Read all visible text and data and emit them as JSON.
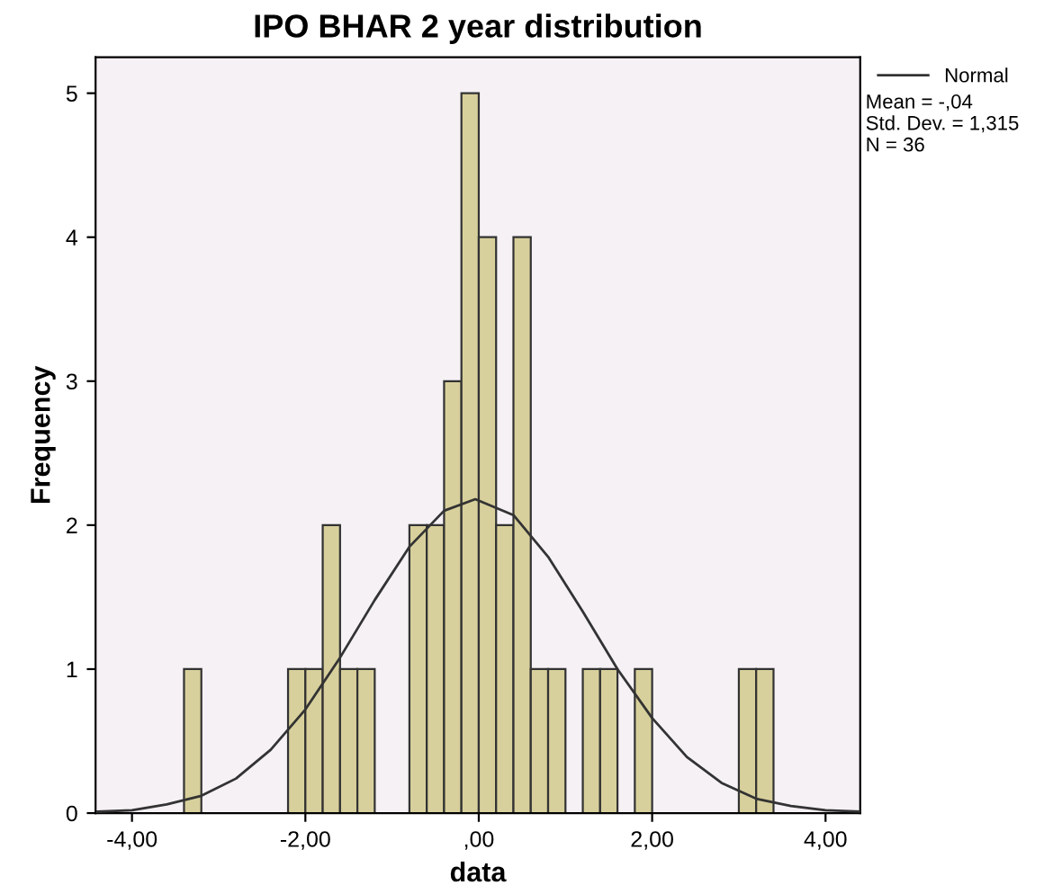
{
  "chart_data": {
    "type": "histogram",
    "title": "IPO BHAR 2 year distribution",
    "xlabel": "data",
    "ylabel": "Frequency",
    "bins": [
      -3.4,
      -3.2,
      -3.0,
      -2.8,
      -2.6,
      -2.4,
      -2.2,
      -2.0,
      -1.8,
      -1.6,
      -1.4,
      -1.2,
      -1.0,
      -0.8,
      -0.6,
      -0.4,
      -0.2,
      0.0,
      0.2,
      0.4,
      0.6,
      0.8,
      1.0,
      1.2,
      1.4,
      1.6,
      1.8,
      2.0,
      2.2,
      2.4,
      2.6,
      2.8,
      3.0,
      3.2,
      3.4
    ],
    "values": [
      1,
      0,
      0,
      0,
      0,
      0,
      1,
      1,
      2,
      1,
      1,
      0,
      0,
      2,
      2,
      3,
      5,
      4,
      2,
      4,
      1,
      1,
      0,
      1,
      1,
      0,
      1,
      0,
      0,
      0,
      0,
      0,
      1,
      1
    ],
    "color": "#d8d09c",
    "series": [
      {
        "name": "Normal",
        "type": "line",
        "color": "#333333",
        "x": [
          -4.4,
          -4.0,
          -3.6,
          -3.2,
          -2.8,
          -2.4,
          -2.0,
          -1.6,
          -1.2,
          -0.8,
          -0.4,
          -0.04,
          0.4,
          0.8,
          1.2,
          1.6,
          2.0,
          2.4,
          2.8,
          3.2,
          3.6,
          4.0,
          4.4
        ],
        "values": [
          0.01,
          0.02,
          0.06,
          0.12,
          0.24,
          0.44,
          0.72,
          1.08,
          1.48,
          1.85,
          2.1,
          2.18,
          2.07,
          1.78,
          1.4,
          1.0,
          0.66,
          0.39,
          0.21,
          0.1,
          0.05,
          0.02,
          0.01
        ]
      }
    ],
    "annotations": [
      "Mean = -,04\nStd. Dev. = 1,315\nN = 36"
    ],
    "xlim": [
      -4.42,
      4.4
    ],
    "ylim": [
      0,
      5.25
    ],
    "xticks": [
      {
        "value": -4,
        "label": "-4,00"
      },
      {
        "value": -2,
        "label": "-2,00"
      },
      {
        "value": 0,
        "label": ",00"
      },
      {
        "value": 2,
        "label": "2,00"
      },
      {
        "value": 4,
        "label": "4,00"
      }
    ],
    "yticks": [
      0,
      1,
      2,
      3,
      4,
      5
    ],
    "grid": false,
    "legend": "top right"
  }
}
